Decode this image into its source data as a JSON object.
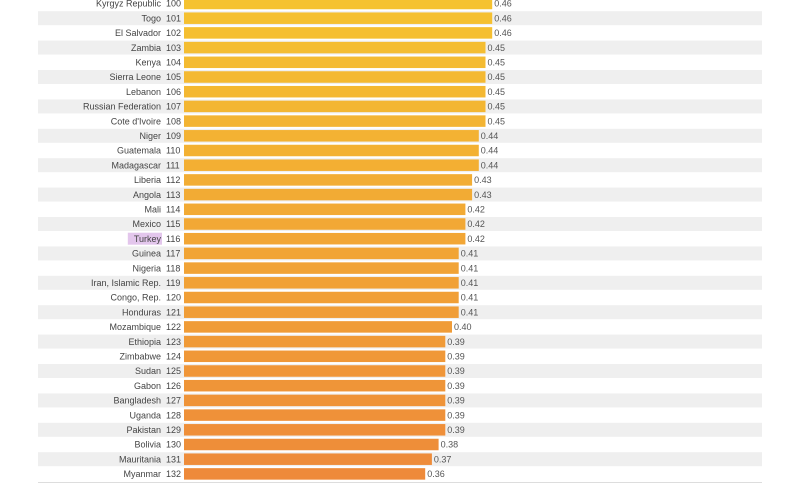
{
  "chart_data": {
    "type": "bar",
    "orientation": "horizontal",
    "highlight": "Turkey",
    "highlight_color": "#e3c6ec",
    "colors": {
      "top": "#f5c230",
      "bottom": "#ee8a3a",
      "stripe": "#efefef"
    },
    "xlim": [
      0,
      1
    ],
    "rows": [
      {
        "country": "Kyrgyz Republic",
        "rank": 100,
        "value": 0.46
      },
      {
        "country": "Togo",
        "rank": 101,
        "value": 0.46
      },
      {
        "country": "El Salvador",
        "rank": 102,
        "value": 0.46
      },
      {
        "country": "Zambia",
        "rank": 103,
        "value": 0.45
      },
      {
        "country": "Kenya",
        "rank": 104,
        "value": 0.45
      },
      {
        "country": "Sierra Leone",
        "rank": 105,
        "value": 0.45
      },
      {
        "country": "Lebanon",
        "rank": 106,
        "value": 0.45
      },
      {
        "country": "Russian Federation",
        "rank": 107,
        "value": 0.45
      },
      {
        "country": "Cote d'Ivoire",
        "rank": 108,
        "value": 0.45
      },
      {
        "country": "Niger",
        "rank": 109,
        "value": 0.44
      },
      {
        "country": "Guatemala",
        "rank": 110,
        "value": 0.44
      },
      {
        "country": "Madagascar",
        "rank": 111,
        "value": 0.44
      },
      {
        "country": "Liberia",
        "rank": 112,
        "value": 0.43
      },
      {
        "country": "Angola",
        "rank": 113,
        "value": 0.43
      },
      {
        "country": "Mali",
        "rank": 114,
        "value": 0.42
      },
      {
        "country": "Mexico",
        "rank": 115,
        "value": 0.42
      },
      {
        "country": "Turkey",
        "rank": 116,
        "value": 0.42
      },
      {
        "country": "Guinea",
        "rank": 117,
        "value": 0.41
      },
      {
        "country": "Nigeria",
        "rank": 118,
        "value": 0.41
      },
      {
        "country": "Iran, Islamic Rep.",
        "rank": 119,
        "value": 0.41
      },
      {
        "country": "Congo, Rep.",
        "rank": 120,
        "value": 0.41
      },
      {
        "country": "Honduras",
        "rank": 121,
        "value": 0.41
      },
      {
        "country": "Mozambique",
        "rank": 122,
        "value": 0.4
      },
      {
        "country": "Ethiopia",
        "rank": 123,
        "value": 0.39
      },
      {
        "country": "Zimbabwe",
        "rank": 124,
        "value": 0.39
      },
      {
        "country": "Sudan",
        "rank": 125,
        "value": 0.39
      },
      {
        "country": "Gabon",
        "rank": 126,
        "value": 0.39
      },
      {
        "country": "Bangladesh",
        "rank": 127,
        "value": 0.39
      },
      {
        "country": "Uganda",
        "rank": 128,
        "value": 0.39
      },
      {
        "country": "Pakistan",
        "rank": 129,
        "value": 0.39
      },
      {
        "country": "Bolivia",
        "rank": 130,
        "value": 0.38
      },
      {
        "country": "Mauritania",
        "rank": 131,
        "value": 0.37
      },
      {
        "country": "Myanmar",
        "rank": 132,
        "value": 0.36
      }
    ]
  }
}
